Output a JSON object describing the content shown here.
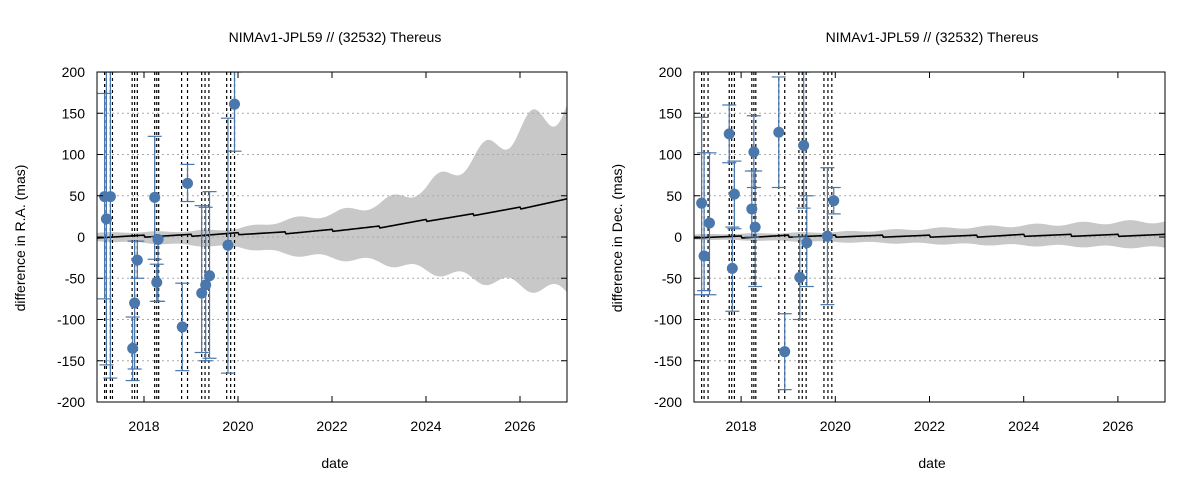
{
  "chart_data": [
    {
      "type": "scatter",
      "title": "NIMAv1-JPL59 // (32532) Thereus",
      "xlabel": "date",
      "ylabel": "difference in R.A. (mas)",
      "xlim": [
        "2017-01-01",
        "2027-01-01"
      ],
      "ylim": [
        -200,
        200
      ],
      "xticks": [
        "2018",
        "2020",
        "2022",
        "2024",
        "2026"
      ],
      "yticks": [
        -200,
        -150,
        -100,
        -50,
        0,
        50,
        100,
        150,
        200
      ],
      "grid": "horizontal dotted",
      "colors": {
        "points": "#4a78ad",
        "band": "#c8c8c8",
        "line": "#000000",
        "vlines": "#000000"
      },
      "observation_dates": [
        "2017-03-01",
        "2017-03-15",
        "2017-04-15",
        "2017-05-01",
        "2017-10-01",
        "2017-10-20",
        "2017-11-10",
        "2018-03-25",
        "2018-04-10",
        "2018-04-25",
        "2018-10-20",
        "2018-12-05",
        "2019-03-25",
        "2019-04-20",
        "2019-05-20",
        "2019-10-05",
        "2019-11-05",
        "2019-12-05"
      ],
      "points": [
        {
          "x": "2017-03-01",
          "y": 49,
          "err_low": -75,
          "err_high": 174
        },
        {
          "x": "2017-03-15",
          "y": 22,
          "err_low": -155,
          "err_high": 200
        },
        {
          "x": "2017-04-15",
          "y": 49,
          "err_low": -171,
          "err_high": 200
        },
        {
          "x": "2017-10-05",
          "y": -135,
          "err_low": -174,
          "err_high": -97
        },
        {
          "x": "2017-10-20",
          "y": -80,
          "err_low": -160,
          "err_high": -5
        },
        {
          "x": "2017-11-10",
          "y": -28,
          "err_low": -50,
          "err_high": -5
        },
        {
          "x": "2018-03-25",
          "y": 48,
          "err_low": -27,
          "err_high": 122
        },
        {
          "x": "2018-04-10",
          "y": -55,
          "err_low": -78,
          "err_high": -33
        },
        {
          "x": "2018-04-20",
          "y": -3,
          "err_low": -78,
          "err_high": 0
        },
        {
          "x": "2018-10-25",
          "y": -109,
          "err_low": -162,
          "err_high": -56
        },
        {
          "x": "2018-12-05",
          "y": 65,
          "err_low": 43,
          "err_high": 88
        },
        {
          "x": "2019-03-25",
          "y": -68,
          "err_low": -140,
          "err_high": 38
        },
        {
          "x": "2019-04-25",
          "y": -58,
          "err_low": -150,
          "err_high": 36
        },
        {
          "x": "2019-05-25",
          "y": -47,
          "err_low": -147,
          "err_high": 55
        },
        {
          "x": "2019-10-15",
          "y": -10,
          "err_low": -165,
          "err_high": 144
        },
        {
          "x": "2019-12-05",
          "y": 161,
          "err_low": 104,
          "err_high": 200
        }
      ],
      "prediction": {
        "x": [
          "2017-01-01",
          "2018-01-01",
          "2019-01-01",
          "2020-01-01",
          "2021-01-01",
          "2022-01-01",
          "2023-01-01",
          "2024-01-01",
          "2025-01-01",
          "2026-01-01",
          "2027-01-01"
        ],
        "mean": [
          0,
          1,
          2,
          4,
          5,
          8,
          12,
          20,
          27,
          35,
          45
        ],
        "lower": [
          -5,
          -7,
          -10,
          -12,
          -20,
          -25,
          -30,
          -40,
          -50,
          -58,
          -67
        ],
        "upper": [
          5,
          6,
          7,
          10,
          20,
          28,
          40,
          60,
          95,
          130,
          160
        ]
      }
    },
    {
      "type": "scatter",
      "title": "NIMAv1-JPL59 // (32532) Thereus",
      "xlabel": "date",
      "ylabel": "difference in Dec. (mas)",
      "xlim": [
        "2017-01-01",
        "2027-01-01"
      ],
      "ylim": [
        -200,
        200
      ],
      "xticks": [
        "2018",
        "2020",
        "2022",
        "2024",
        "2026"
      ],
      "yticks": [
        -200,
        -150,
        -100,
        -50,
        0,
        50,
        100,
        150,
        200
      ],
      "grid": "horizontal dotted",
      "colors": {
        "points": "#4a78ad",
        "band": "#c8c8c8",
        "line": "#000000",
        "vlines": "#000000"
      },
      "observation_dates": [
        "2017-03-01",
        "2017-03-20",
        "2017-04-20",
        "2017-10-01",
        "2017-10-20",
        "2017-11-10",
        "2018-03-25",
        "2018-04-10",
        "2018-04-25",
        "2018-10-20",
        "2018-12-05",
        "2019-03-25",
        "2019-04-20",
        "2019-05-20",
        "2019-10-05",
        "2019-11-05",
        "2019-12-05"
      ],
      "points": [
        {
          "x": "2017-03-01",
          "y": 41,
          "err_low": -70,
          "err_high": 145
        },
        {
          "x": "2017-03-20",
          "y": -23,
          "err_low": -65,
          "err_high": 102
        },
        {
          "x": "2017-05-01",
          "y": 17,
          "err_low": -70,
          "err_high": 102
        },
        {
          "x": "2017-10-01",
          "y": 125,
          "err_low": 90,
          "err_high": 160
        },
        {
          "x": "2017-10-25",
          "y": -38,
          "err_low": -90,
          "err_high": 12
        },
        {
          "x": "2017-11-10",
          "y": 52,
          "err_low": 10,
          "err_high": 92
        },
        {
          "x": "2018-03-25",
          "y": 34,
          "err_low": 0,
          "err_high": 80
        },
        {
          "x": "2018-04-10",
          "y": 103,
          "err_low": 60,
          "err_high": 147
        },
        {
          "x": "2018-04-20",
          "y": 12,
          "err_low": -60,
          "err_high": 80
        },
        {
          "x": "2018-10-20",
          "y": 127,
          "err_low": 60,
          "err_high": 194
        },
        {
          "x": "2018-12-05",
          "y": -139,
          "err_low": -185,
          "err_high": -93
        },
        {
          "x": "2019-04-01",
          "y": -49,
          "err_low": -100,
          "err_high": 0
        },
        {
          "x": "2019-05-01",
          "y": 111,
          "err_low": 35,
          "err_high": 200
        },
        {
          "x": "2019-05-25",
          "y": -7,
          "err_low": -60,
          "err_high": 50
        },
        {
          "x": "2019-11-01",
          "y": 1,
          "err_low": -82,
          "err_high": 84
        },
        {
          "x": "2019-12-20",
          "y": 44,
          "err_low": 28,
          "err_high": 60
        }
      ],
      "prediction": {
        "x": [
          "2017-01-01",
          "2018-01-01",
          "2019-01-01",
          "2020-01-01",
          "2021-01-01",
          "2022-01-01",
          "2023-01-01",
          "2024-01-01",
          "2025-01-01",
          "2026-01-01",
          "2027-01-01"
        ],
        "mean": [
          0,
          0,
          1,
          1,
          1,
          1,
          1,
          2,
          2,
          2,
          2
        ],
        "lower": [
          -3,
          -4,
          -5,
          -6,
          -7,
          -8,
          -9,
          -10,
          -11,
          -12,
          -13
        ],
        "upper": [
          3,
          4,
          5,
          6,
          8,
          10,
          12,
          14,
          16,
          18,
          19
        ]
      }
    }
  ]
}
